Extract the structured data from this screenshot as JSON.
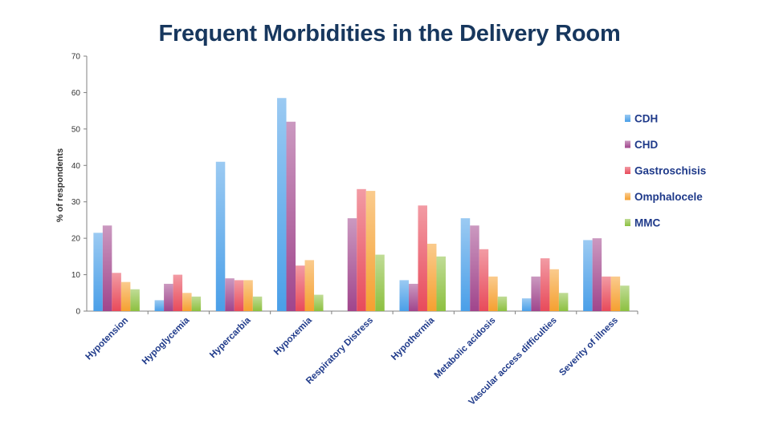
{
  "slide": {
    "title": "Frequent Morbidities in the Delivery Room"
  },
  "chart_data": {
    "type": "bar",
    "title": "Frequent Morbidities in the Delivery Room",
    "xlabel": "",
    "ylabel": "% of respondents",
    "ylim": [
      0,
      70
    ],
    "yticks": [
      0,
      10,
      20,
      30,
      40,
      50,
      60,
      70
    ],
    "grid": false,
    "legend_position": "right",
    "categories": [
      "Hypotension",
      "Hypoglycemia",
      "Hypercarbia",
      "Hypoxemia",
      "Respiratory Distress",
      "Hypothermia",
      "Metabolic acidosis",
      "Vascular access difficulties",
      "Severity of illness"
    ],
    "series": [
      {
        "name": "CDH",
        "color": "#4a9fe8",
        "values": [
          21.5,
          3,
          41,
          58.5,
          0,
          8.5,
          25.5,
          3.5,
          19.5
        ]
      },
      {
        "name": "CHD",
        "color": "#a0458c",
        "values": [
          23.5,
          7.5,
          9,
          52,
          25.5,
          7.5,
          23.5,
          9.5,
          20
        ]
      },
      {
        "name": "Gastroschisis",
        "color": "#e84a5a",
        "values": [
          10.5,
          10,
          8.5,
          12.5,
          33.5,
          29,
          17,
          14.5,
          9.5
        ]
      },
      {
        "name": "Omphalocele",
        "color": "#f5a030",
        "values": [
          8,
          5,
          8.5,
          14,
          33,
          18.5,
          9.5,
          11.5,
          9.5
        ]
      },
      {
        "name": "MMC",
        "color": "#8cc040",
        "values": [
          6,
          4,
          4,
          4.5,
          15.5,
          15,
          4,
          5,
          7
        ]
      }
    ]
  }
}
